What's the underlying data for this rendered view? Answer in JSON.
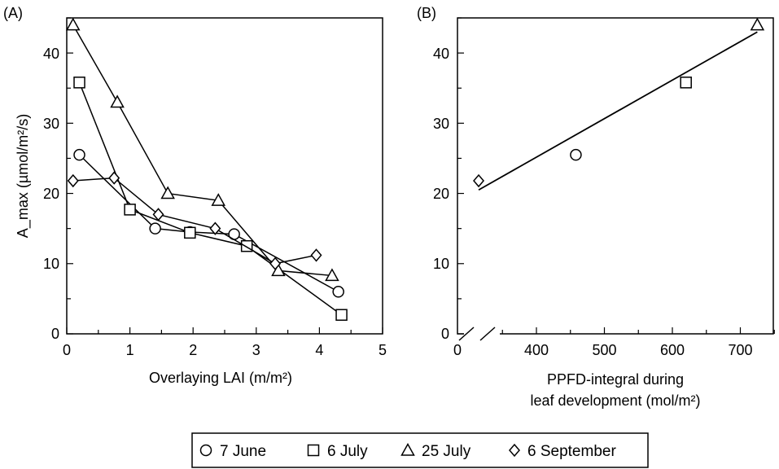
{
  "chart_data": [
    {
      "panel": "(A)",
      "type": "line",
      "xlabel": "Overlaying LAI (m/m²)",
      "ylabel": "A_max (µmol/m²/s)",
      "xlim": [
        0,
        5
      ],
      "ylim": [
        0,
        45
      ],
      "xticks": [
        "0",
        "1",
        "2",
        "3",
        "4",
        "5"
      ],
      "yticks": [
        "0",
        "10",
        "20",
        "30",
        "40"
      ],
      "series": [
        {
          "name": "7 June",
          "marker": "circle",
          "x": [
            0.2,
            1.4,
            1.95,
            2.65,
            4.3
          ],
          "y": [
            25.5,
            15.0,
            14.5,
            14.2,
            6.0
          ]
        },
        {
          "name": "6 July",
          "marker": "square",
          "x": [
            0.2,
            1.0,
            1.95,
            2.85,
            4.35
          ],
          "y": [
            35.8,
            17.7,
            14.4,
            12.5,
            2.7
          ]
        },
        {
          "name": "25 July",
          "marker": "triangle",
          "x": [
            0.1,
            0.8,
            1.6,
            2.4,
            3.35,
            4.2
          ],
          "y": [
            44.0,
            33.0,
            20.0,
            19.0,
            9.0,
            8.3
          ]
        },
        {
          "name": "6 September",
          "marker": "diamond",
          "x": [
            0.1,
            0.75,
            1.45,
            2.35,
            3.3,
            3.95
          ],
          "y": [
            21.8,
            22.2,
            17.0,
            15.0,
            10.0,
            11.2
          ]
        }
      ]
    },
    {
      "panel": "(B)",
      "type": "scatter",
      "xlabel_line1": "PPFD-integral during",
      "xlabel_line2": "leaf development (mol/m²)",
      "xlim": [
        250,
        750
      ],
      "ylim": [
        0,
        45
      ],
      "xticks": [
        "0",
        "400",
        "500",
        "600",
        "700"
      ],
      "yticks": [
        "0",
        "10",
        "20",
        "30",
        "40"
      ],
      "axis_break": true,
      "points": [
        {
          "series": "6 September",
          "marker": "diamond",
          "x": 315,
          "y": 21.8
        },
        {
          "series": "7 June",
          "marker": "circle",
          "x": 458,
          "y": 25.5
        },
        {
          "series": "6 July",
          "marker": "square",
          "x": 620,
          "y": 35.8
        },
        {
          "series": "25 July",
          "marker": "triangle",
          "x": 725,
          "y": 44.0
        }
      ],
      "fit_line": {
        "x": [
          315,
          725
        ],
        "y": [
          20.5,
          43.0
        ]
      }
    }
  ],
  "legend": {
    "placement": "bottom-center",
    "items": [
      {
        "marker": "circle",
        "label": "7 June"
      },
      {
        "marker": "square",
        "label": "6 July"
      },
      {
        "marker": "triangle",
        "label": "25 July"
      },
      {
        "marker": "diamond",
        "label": "6 September"
      }
    ]
  }
}
